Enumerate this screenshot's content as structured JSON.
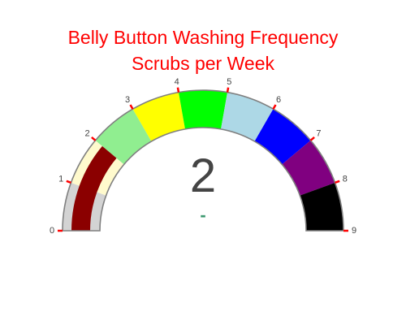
{
  "chart_data": {
    "type": "gauge",
    "title_lines": [
      "Belly Button Washing Frequency",
      "Scrubs per Week"
    ],
    "title_color": "#ff0000",
    "value": 2,
    "value_color": "#444444",
    "delta_text": "-",
    "delta_color": "#3d9970",
    "range": [
      0,
      9
    ],
    "ticks": [
      "0",
      "1",
      "2",
      "3",
      "4",
      "5",
      "6",
      "7",
      "8",
      "9"
    ],
    "tick_color": "#ff0000",
    "tick_label_color": "#444444",
    "bar_color": "#8b0000",
    "border_color": "#808080",
    "steps": [
      {
        "range": [
          0,
          1
        ],
        "color": "#d3d3d3"
      },
      {
        "range": [
          1,
          2
        ],
        "color": "#fffacd"
      },
      {
        "range": [
          2,
          3
        ],
        "color": "#90ee90"
      },
      {
        "range": [
          3,
          4
        ],
        "color": "#ffff00"
      },
      {
        "range": [
          4,
          5
        ],
        "color": "#00ff00"
      },
      {
        "range": [
          5,
          6
        ],
        "color": "#add8e6"
      },
      {
        "range": [
          6,
          7
        ],
        "color": "#0000ff"
      },
      {
        "range": [
          7,
          8
        ],
        "color": "#800080"
      },
      {
        "range": [
          8,
          9
        ],
        "color": "#000000"
      }
    ]
  }
}
